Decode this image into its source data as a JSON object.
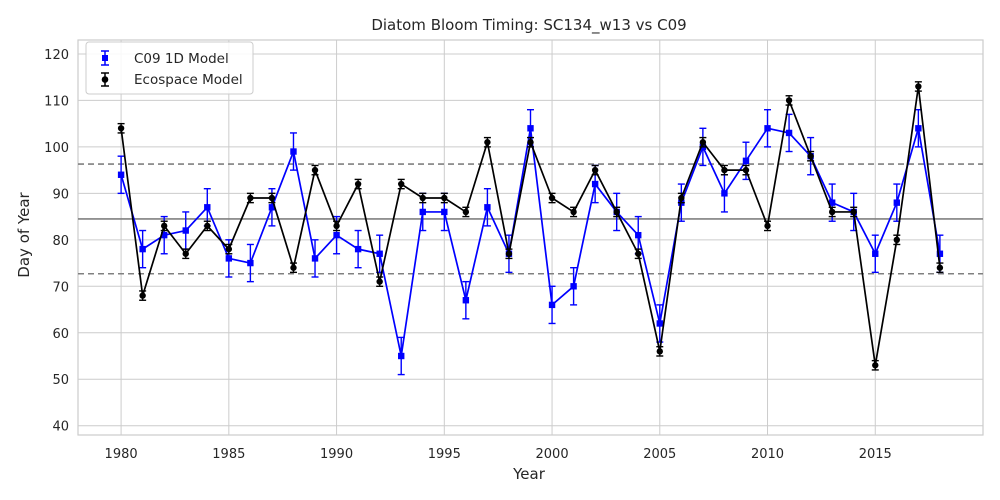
{
  "chart_data": {
    "type": "line",
    "title": "Diatom Bloom Timing: SC134_w13 vs C09",
    "xlabel": "Year",
    "ylabel": "Day of Year",
    "xlim": [
      1978,
      2020
    ],
    "ylim": [
      38,
      123
    ],
    "xticks": [
      1980,
      1985,
      1990,
      1995,
      2000,
      2005,
      2010,
      2015
    ],
    "yticks": [
      40,
      50,
      60,
      70,
      80,
      90,
      100,
      110,
      120
    ],
    "grid": true,
    "legend": "top-left",
    "x": [
      1980,
      1981,
      1982,
      1983,
      1984,
      1985,
      1986,
      1987,
      1988,
      1989,
      1990,
      1991,
      1992,
      1993,
      1994,
      1995,
      1996,
      1997,
      1998,
      1999,
      2000,
      2001,
      2002,
      2003,
      2004,
      2005,
      2006,
      2007,
      2008,
      2009,
      2010,
      2011,
      2012,
      2013,
      2014,
      2015,
      2016,
      2017,
      2018
    ],
    "series": [
      {
        "name": "C09 1D Model",
        "color": "#0000ff",
        "marker": "square",
        "values": [
          94,
          78,
          81,
          82,
          87,
          76,
          75,
          87,
          99,
          76,
          81,
          78,
          77,
          55,
          86,
          86,
          67,
          87,
          77,
          104,
          66,
          70,
          92,
          86,
          81,
          62,
          88,
          100,
          90,
          97,
          104,
          103,
          98,
          88,
          86,
          77,
          88,
          104,
          77
        ],
        "errors": [
          4,
          4,
          4,
          4,
          4,
          4,
          4,
          4,
          4,
          4,
          4,
          4,
          4,
          4,
          4,
          4,
          4,
          4,
          4,
          4,
          4,
          4,
          4,
          4,
          4,
          4,
          4,
          4,
          4,
          4,
          4,
          4,
          4,
          4,
          4,
          4,
          4,
          4,
          4
        ]
      },
      {
        "name": "Ecospace Model",
        "color": "#000000",
        "marker": "circle",
        "values": [
          104,
          68,
          83,
          77,
          83,
          78,
          89,
          89,
          74,
          95,
          83,
          92,
          71,
          92,
          89,
          89,
          86,
          101,
          77,
          101,
          89,
          86,
          95,
          86,
          77,
          56,
          89,
          101,
          95,
          95,
          83,
          110,
          98,
          86,
          86,
          53,
          80,
          113,
          74
        ],
        "errors": [
          1,
          1,
          1,
          1,
          1,
          1,
          1,
          1,
          1,
          1,
          1,
          1,
          1,
          1,
          1,
          1,
          1,
          1,
          1,
          1,
          1,
          1,
          1,
          1,
          1,
          1,
          1,
          1,
          1,
          1,
          1,
          1,
          1,
          1,
          1,
          1,
          1,
          1,
          1
        ]
      }
    ],
    "hlines": [
      {
        "y": 84.5,
        "style": "solid",
        "color": "#808080"
      },
      {
        "y": 96.3,
        "style": "dashed",
        "color": "#808080"
      },
      {
        "y": 72.7,
        "style": "dashed",
        "color": "#808080"
      }
    ]
  }
}
